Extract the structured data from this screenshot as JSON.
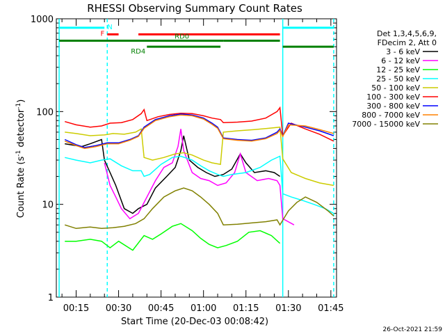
{
  "chart_data": {
    "type": "line",
    "title": "RHESSI Observing Summary Count Rates",
    "xlabel": "Start Time (20-Dec-03 00:08:42)",
    "ylabel": "Count Rate (s⁻¹ detector⁻¹)",
    "ylabel_main": "Count Rate (s",
    "ylabel_exp": "-1",
    "ylabel_mid": " detector",
    "ylabel_exp2": "-1",
    "ylabel_end": ")",
    "y_scale": "log",
    "ylim": [
      1,
      1000
    ],
    "xlim": [
      "00:08:42",
      "01:47:00"
    ],
    "x_ticks": [
      "00:15",
      "00:30",
      "00:45",
      "01:00",
      "01:15",
      "01:30",
      "01:45"
    ],
    "y_ticks": [
      "1",
      "10",
      "100",
      "1000"
    ],
    "timestamp": "26-Oct-2021 21:59",
    "legend_header": [
      "Det 1,3,4,5,6,9,",
      "FDecim 2, Att 0"
    ],
    "series": [
      {
        "name": "3 - 6 keV",
        "color": "#000000",
        "points": [
          [
            "00:11",
            45
          ],
          [
            "00:17",
            42
          ],
          [
            "00:20",
            45
          ],
          [
            "00:24",
            50
          ],
          [
            "00:25",
            30
          ],
          [
            "00:27",
            22
          ],
          [
            "00:29",
            16
          ],
          [
            "00:32",
            9
          ],
          [
            "00:35",
            8
          ],
          [
            "00:37",
            9
          ],
          [
            "00:40",
            10
          ],
          [
            "00:43",
            15
          ],
          [
            "00:47",
            20
          ],
          [
            "00:50",
            25
          ],
          [
            "00:52",
            38
          ],
          [
            "00:53",
            55
          ],
          [
            "00:55",
            30
          ],
          [
            "00:58",
            25
          ],
          [
            "01:01",
            22
          ],
          [
            "01:04",
            20
          ],
          [
            "01:07",
            21
          ],
          [
            "01:10",
            24
          ],
          [
            "01:13",
            35
          ],
          [
            "01:15",
            28
          ],
          [
            "01:18",
            22
          ],
          [
            "01:22",
            23
          ],
          [
            "01:25",
            22
          ],
          [
            "01:27",
            20
          ]
        ]
      },
      {
        "name": "6 - 12 keV",
        "color": "#ff00ff",
        "points": [
          [
            "00:25",
            28
          ],
          [
            "00:27",
            16
          ],
          [
            "00:29",
            12
          ],
          [
            "00:31",
            9
          ],
          [
            "00:34",
            7
          ],
          [
            "00:37",
            8
          ],
          [
            "00:40",
            12
          ],
          [
            "00:43",
            18
          ],
          [
            "00:46",
            25
          ],
          [
            "00:49",
            28
          ],
          [
            "00:51",
            42
          ],
          [
            "00:52",
            65
          ],
          [
            "00:53",
            38
          ],
          [
            "00:56",
            22
          ],
          [
            "00:59",
            19
          ],
          [
            "01:02",
            18
          ],
          [
            "01:05",
            16
          ],
          [
            "01:08",
            17
          ],
          [
            "01:11",
            22
          ],
          [
            "01:13",
            35
          ],
          [
            "01:15",
            22
          ],
          [
            "01:19",
            18
          ],
          [
            "01:23",
            19
          ],
          [
            "01:26",
            18
          ],
          [
            "01:27",
            16
          ],
          [
            "01:28",
            7
          ],
          [
            "01:32",
            6
          ]
        ]
      },
      {
        "name": "12 - 25 keV",
        "color": "#00ff00",
        "points": [
          [
            "00:11",
            4
          ],
          [
            "00:15",
            4
          ],
          [
            "00:20",
            4.2
          ],
          [
            "00:24",
            4
          ],
          [
            "00:27",
            3.4
          ],
          [
            "00:30",
            4
          ],
          [
            "00:35",
            3.2
          ],
          [
            "00:39",
            4.6
          ],
          [
            "00:42",
            4.2
          ],
          [
            "00:45",
            4.8
          ],
          [
            "00:49",
            5.8
          ],
          [
            "00:52",
            6.2
          ],
          [
            "00:56",
            5.2
          ],
          [
            "00:59",
            4.3
          ],
          [
            "01:02",
            3.7
          ],
          [
            "01:05",
            3.4
          ],
          [
            "01:08",
            3.6
          ],
          [
            "01:12",
            4
          ],
          [
            "01:16",
            5
          ],
          [
            "01:20",
            5.2
          ],
          [
            "01:24",
            4.6
          ],
          [
            "01:27",
            3.8
          ]
        ]
      },
      {
        "name": "25 - 50 keV",
        "color": "#00ffff",
        "points": [
          [
            "00:11",
            32
          ],
          [
            "00:15",
            30
          ],
          [
            "00:20",
            28
          ],
          [
            "00:24",
            30
          ],
          [
            "00:27",
            31
          ],
          [
            "00:31",
            26
          ],
          [
            "00:35",
            23
          ],
          [
            "00:38",
            23
          ],
          [
            "00:39",
            20
          ],
          [
            "00:41",
            21
          ],
          [
            "00:45",
            27
          ],
          [
            "00:49",
            32
          ],
          [
            "00:52",
            33
          ],
          [
            "00:56",
            30
          ],
          [
            "00:59",
            26
          ],
          [
            "01:02",
            23
          ],
          [
            "01:05",
            21
          ],
          [
            "01:07",
            20
          ],
          [
            "01:10",
            21
          ],
          [
            "01:15",
            22
          ],
          [
            "01:20",
            25
          ],
          [
            "01:24",
            30
          ],
          [
            "01:27",
            33
          ],
          [
            "01:28",
            13
          ],
          [
            "01:31",
            12
          ],
          [
            "01:35",
            11
          ],
          [
            "01:39",
            10
          ],
          [
            "01:43",
            9
          ],
          [
            "01:46",
            8
          ]
        ]
      },
      {
        "name": "50 - 100 keV",
        "color": "#cccc00",
        "points": [
          [
            "00:11",
            60
          ],
          [
            "00:15",
            58
          ],
          [
            "00:20",
            55
          ],
          [
            "00:25",
            56
          ],
          [
            "00:28",
            58
          ],
          [
            "00:32",
            57
          ],
          [
            "00:36",
            60
          ],
          [
            "00:38",
            65
          ],
          [
            "00:39",
            32
          ],
          [
            "00:42",
            30
          ],
          [
            "00:46",
            32
          ],
          [
            "00:50",
            35
          ],
          [
            "00:53",
            36
          ],
          [
            "00:56",
            34
          ],
          [
            "01:00",
            30
          ],
          [
            "01:03",
            28
          ],
          [
            "01:06",
            27
          ],
          [
            "01:07",
            60
          ],
          [
            "01:12",
            62
          ],
          [
            "01:18",
            64
          ],
          [
            "01:23",
            66
          ],
          [
            "01:27",
            68
          ],
          [
            "01:28",
            31
          ],
          [
            "01:31",
            22
          ],
          [
            "01:36",
            19
          ],
          [
            "01:41",
            17
          ],
          [
            "01:46",
            16
          ]
        ]
      },
      {
        "name": "100 - 300 keV",
        "color": "#ff0000",
        "points": [
          [
            "00:11",
            78
          ],
          [
            "00:15",
            72
          ],
          [
            "00:20",
            68
          ],
          [
            "00:24",
            70
          ],
          [
            "00:27",
            75
          ],
          [
            "00:31",
            76
          ],
          [
            "00:35",
            82
          ],
          [
            "00:38",
            95
          ],
          [
            "00:39",
            105
          ],
          [
            "00:40",
            80
          ],
          [
            "00:44",
            88
          ],
          [
            "00:48",
            93
          ],
          [
            "00:52",
            96
          ],
          [
            "00:56",
            95
          ],
          [
            "01:00",
            90
          ],
          [
            "01:03",
            85
          ],
          [
            "01:06",
            82
          ],
          [
            "01:07",
            76
          ],
          [
            "01:12",
            77
          ],
          [
            "01:17",
            79
          ],
          [
            "01:22",
            85
          ],
          [
            "01:26",
            100
          ],
          [
            "01:27",
            110
          ],
          [
            "01:28",
            55
          ],
          [
            "01:31",
            75
          ],
          [
            "01:36",
            65
          ],
          [
            "01:41",
            57
          ],
          [
            "01:46",
            48
          ]
        ]
      },
      {
        "name": "300 - 800 keV",
        "color": "#0000ff",
        "points": [
          [
            "00:11",
            50
          ],
          [
            "00:15",
            44
          ],
          [
            "00:18",
            41
          ],
          [
            "00:22",
            43
          ],
          [
            "00:26",
            46
          ],
          [
            "00:30",
            46
          ],
          [
            "00:34",
            50
          ],
          [
            "00:37",
            55
          ],
          [
            "00:39",
            68
          ],
          [
            "00:43",
            82
          ],
          [
            "00:48",
            90
          ],
          [
            "00:52",
            94
          ],
          [
            "00:56",
            92
          ],
          [
            "01:00",
            85
          ],
          [
            "01:03",
            75
          ],
          [
            "01:05",
            68
          ],
          [
            "01:07",
            52
          ],
          [
            "01:12",
            50
          ],
          [
            "01:17",
            49
          ],
          [
            "01:22",
            52
          ],
          [
            "01:26",
            60
          ],
          [
            "01:27",
            65
          ],
          [
            "01:28",
            55
          ],
          [
            "01:30",
            75
          ],
          [
            "01:36",
            68
          ],
          [
            "01:41",
            62
          ],
          [
            "01:46",
            55
          ]
        ]
      },
      {
        "name": "800 - 7000 keV",
        "color": "#ff8000",
        "points": [
          [
            "00:11",
            48
          ],
          [
            "00:15",
            43
          ],
          [
            "00:18",
            40
          ],
          [
            "00:22",
            42
          ],
          [
            "00:26",
            45
          ],
          [
            "00:30",
            45
          ],
          [
            "00:34",
            49
          ],
          [
            "00:37",
            54
          ],
          [
            "00:39",
            66
          ],
          [
            "00:43",
            80
          ],
          [
            "00:48",
            88
          ],
          [
            "00:52",
            92
          ],
          [
            "00:56",
            90
          ],
          [
            "01:00",
            83
          ],
          [
            "01:03",
            73
          ],
          [
            "01:05",
            66
          ],
          [
            "01:07",
            51
          ],
          [
            "01:12",
            49
          ],
          [
            "01:17",
            48
          ],
          [
            "01:22",
            51
          ],
          [
            "01:26",
            58
          ],
          [
            "01:27",
            63
          ],
          [
            "01:28",
            54
          ],
          [
            "01:30",
            72
          ],
          [
            "01:36",
            70
          ],
          [
            "01:41",
            64
          ],
          [
            "01:46",
            58
          ]
        ]
      },
      {
        "name": "7000 - 15000 keV",
        "color": "#808000",
        "points": [
          [
            "00:11",
            6
          ],
          [
            "00:15",
            5.5
          ],
          [
            "00:20",
            5.7
          ],
          [
            "00:24",
            5.5
          ],
          [
            "00:28",
            5.6
          ],
          [
            "00:32",
            5.8
          ],
          [
            "00:36",
            6.2
          ],
          [
            "00:39",
            7
          ],
          [
            "00:42",
            9
          ],
          [
            "00:46",
            12
          ],
          [
            "00:50",
            14
          ],
          [
            "00:53",
            15
          ],
          [
            "00:56",
            14
          ],
          [
            "00:59",
            12
          ],
          [
            "01:02",
            10
          ],
          [
            "01:05",
            8
          ],
          [
            "01:07",
            6
          ],
          [
            "01:12",
            6.1
          ],
          [
            "01:17",
            6.3
          ],
          [
            "01:22",
            6.5
          ],
          [
            "01:26",
            6.8
          ],
          [
            "01:27",
            6
          ],
          [
            "01:30",
            8.5
          ],
          [
            "01:33",
            10.5
          ],
          [
            "01:36",
            12
          ],
          [
            "01:40",
            10.5
          ],
          [
            "01:44",
            8.5
          ],
          [
            "01:46",
            7.5
          ]
        ]
      }
    ],
    "annotations": [
      {
        "label": "N",
        "color": "#00ffff",
        "t0": "00:09",
        "t1": "00:25",
        "t2": "01:28",
        "t3": "01:46",
        "y": 800
      },
      {
        "label": "F",
        "color": "#ff0000",
        "t0": "00:26",
        "t1": "00:30",
        "t2": "00:37",
        "t3": "01:27",
        "y": 680
      },
      {
        "label": "RD0",
        "color": "#008000",
        "t0": "00:09",
        "t1": "01:07",
        "t2": "01:07",
        "t3": "01:27",
        "y": 580
      },
      {
        "label": "RD4",
        "color": "#008000",
        "t0": "00:40",
        "t1": "01:06",
        "t2": "01:28",
        "t3": "01:46",
        "y": 500
      }
    ],
    "vlines_dashed": [
      "00:26",
      "01:46"
    ],
    "vlines_solid": [
      "00:09",
      "01:28"
    ],
    "vline_color": "#00ffff",
    "grid": false,
    "legend_position": "right"
  }
}
